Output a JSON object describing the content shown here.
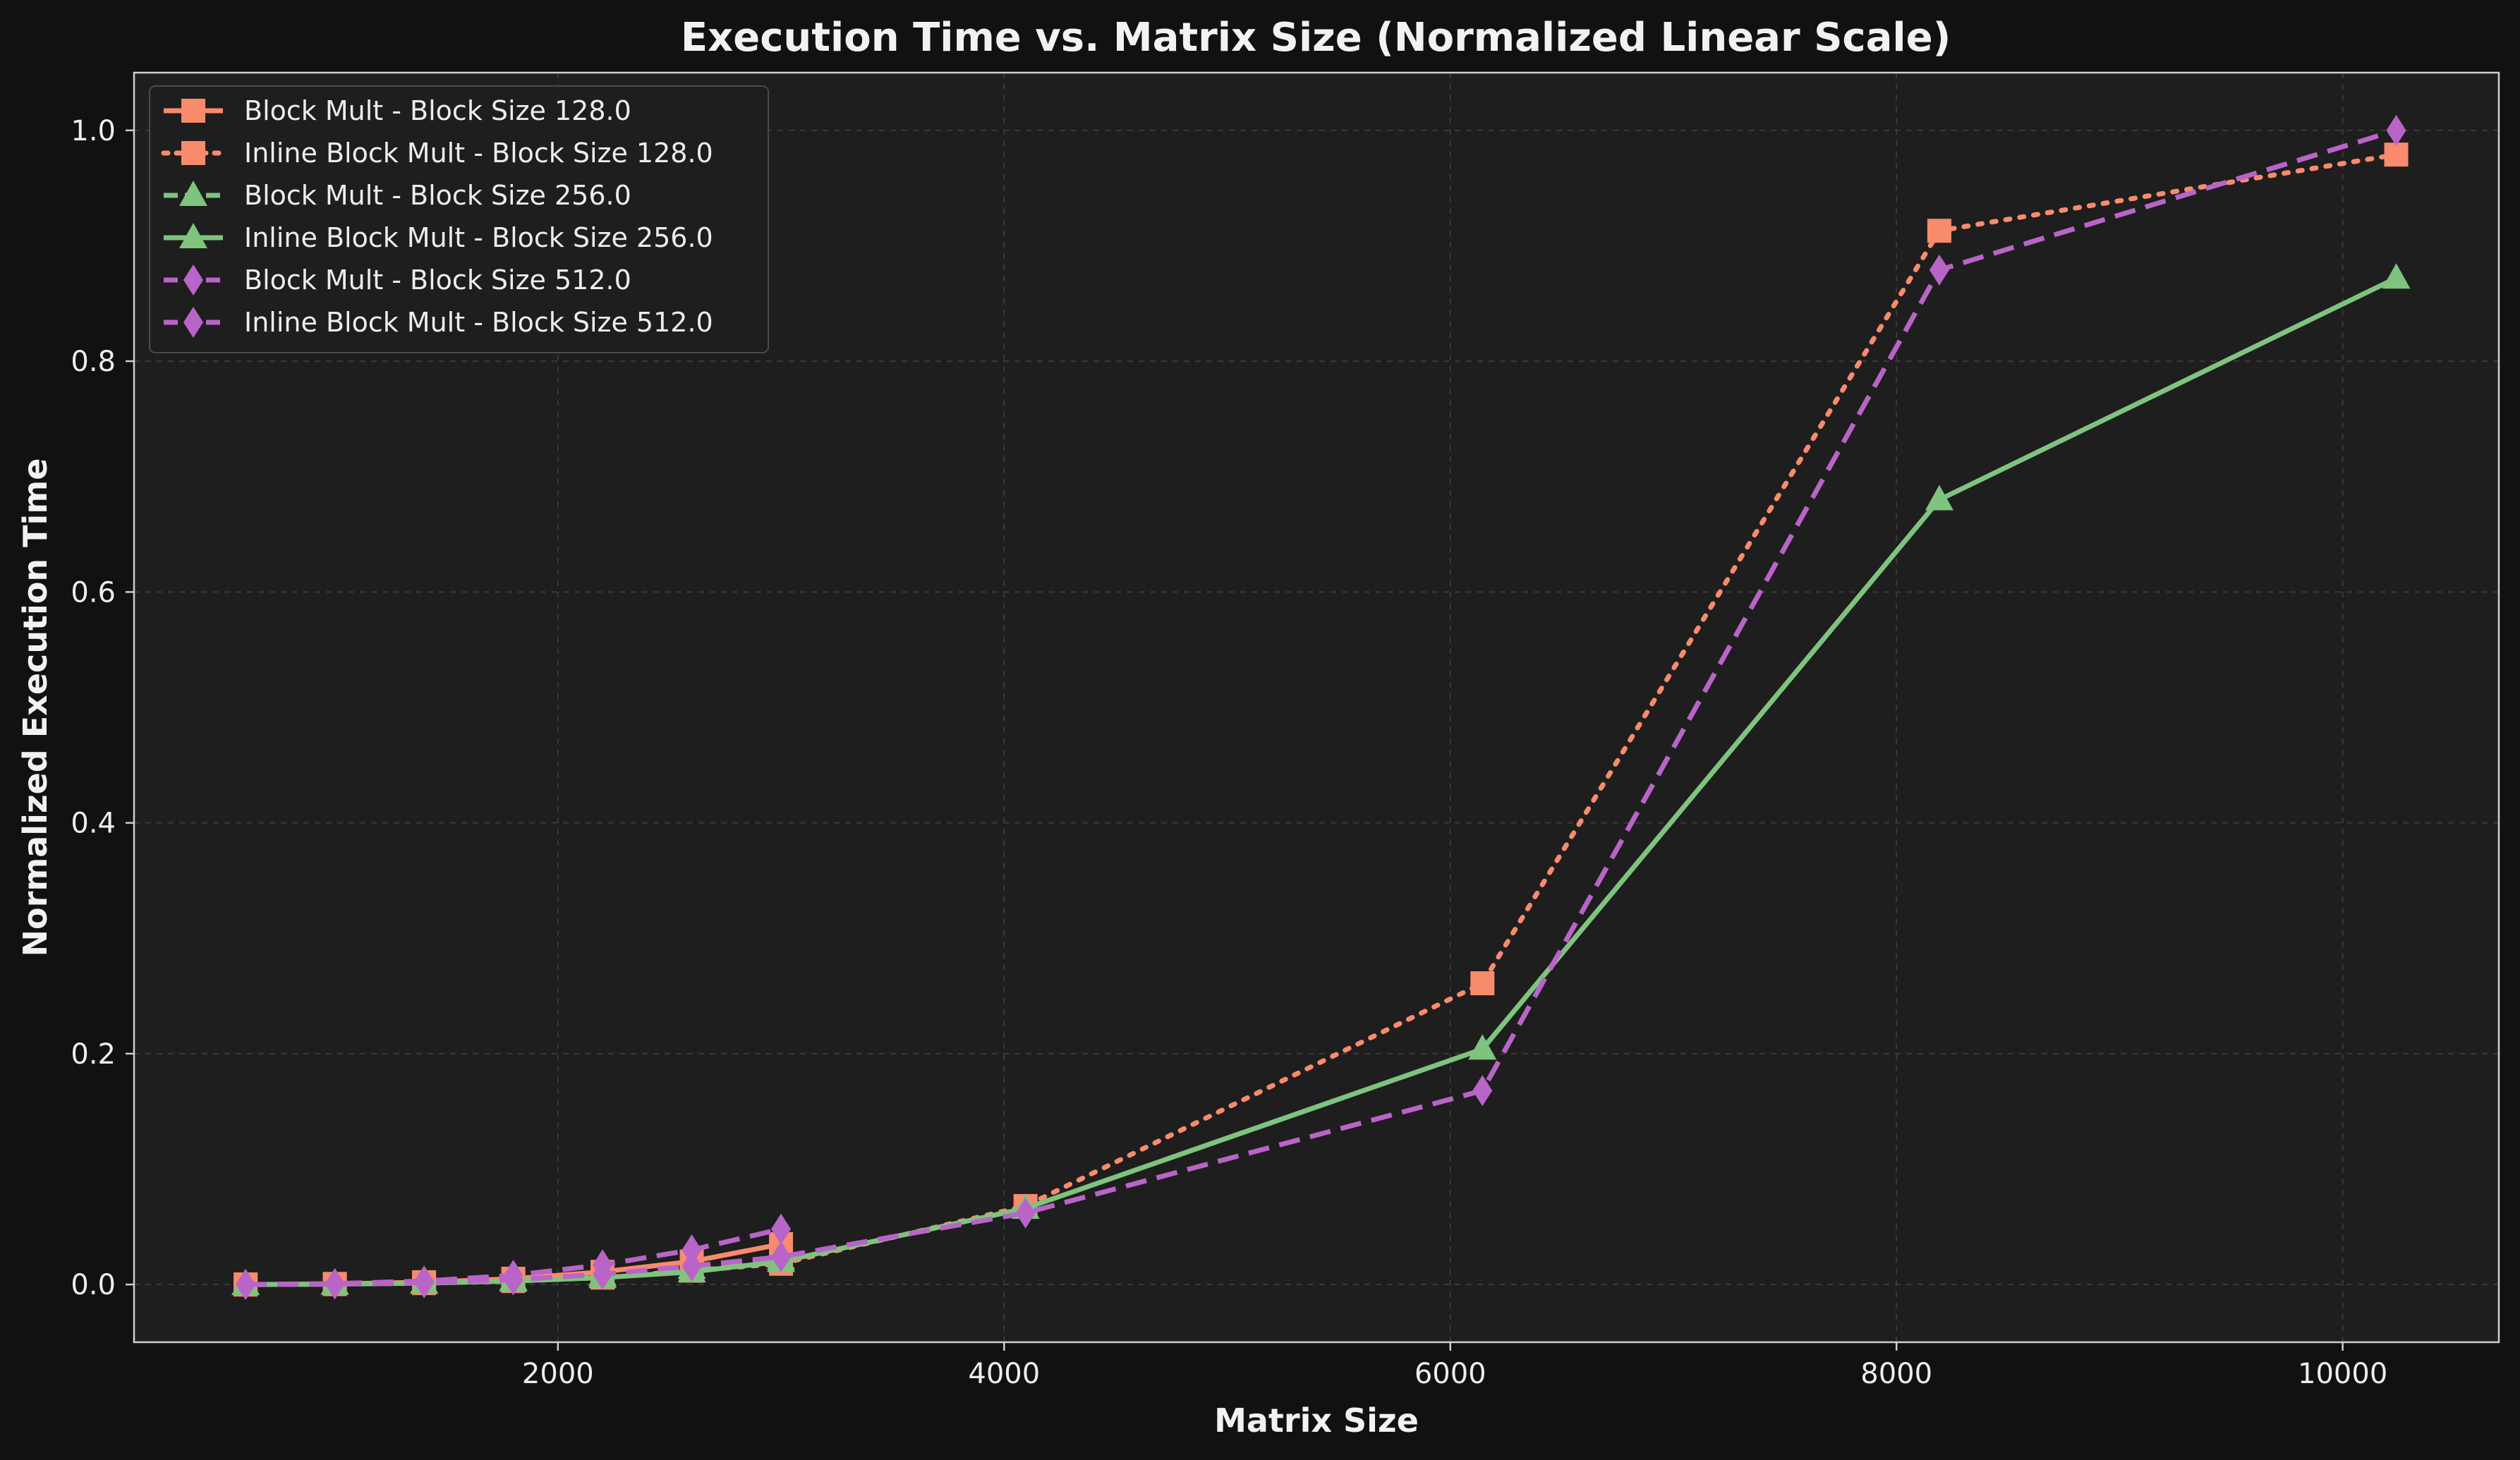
{
  "chart_data": {
    "type": "line",
    "title": "Execution Time vs. Matrix Size (Normalized Linear Scale)",
    "xlabel": "Matrix Size",
    "ylabel": "Normalized Execution Time",
    "xlim": [
      100,
      10700
    ],
    "ylim": [
      -0.05,
      1.05
    ],
    "xticks": [
      2000,
      4000,
      6000,
      8000,
      10000
    ],
    "yticks": [
      0.0,
      0.2,
      0.4,
      0.6,
      0.8,
      1.0
    ],
    "ytick_labels": [
      "0.0",
      "0.2",
      "0.4",
      "0.6",
      "0.8",
      "1.0"
    ],
    "grid": true,
    "legend_position": "top-left",
    "colors": {
      "background": "#111111",
      "plot_background": "#1e1e1e",
      "axes": "#cfcfcf",
      "grid": "#3a3a3a"
    },
    "series": [
      {
        "name": "Block Mult - Block Size 128.0",
        "color": "#f88b6c",
        "dash": "solid",
        "marker": "square",
        "x": [
          600,
          1000,
          1400,
          1800,
          2200,
          2600,
          3000
        ],
        "y": [
          0.0,
          0.0005,
          0.002,
          0.005,
          0.011,
          0.02,
          0.035
        ]
      },
      {
        "name": "Inline Block Mult - Block Size 128.0",
        "color": "#f88b6c",
        "dash": "dotted",
        "marker": "square",
        "x": [
          600,
          1000,
          1400,
          1800,
          2200,
          2600,
          3000,
          4096,
          6144,
          8192,
          10240
        ],
        "y": [
          0.0,
          0.0003,
          0.0012,
          0.003,
          0.006,
          0.012,
          0.018,
          0.068,
          0.261,
          0.913,
          0.979
        ]
      },
      {
        "name": "Block Mult - Block Size 256.0",
        "color": "#7ec47f",
        "dash": "dashed",
        "marker": "triangle",
        "x": [
          600,
          1000,
          1400,
          1800,
          2200,
          2600,
          3000
        ],
        "y": [
          0.0,
          0.0004,
          0.0015,
          0.004,
          0.008,
          0.014,
          0.022
        ]
      },
      {
        "name": "Inline Block Mult - Block Size 256.0",
        "color": "#7ec47f",
        "dash": "solid",
        "marker": "triangle",
        "x": [
          600,
          1000,
          1400,
          1800,
          2200,
          2600,
          3000,
          4096,
          6144,
          8192,
          10240
        ],
        "y": [
          0.0,
          0.0003,
          0.0012,
          0.003,
          0.006,
          0.011,
          0.02,
          0.066,
          0.204,
          0.68,
          0.872
        ]
      },
      {
        "name": "Block Mult - Block Size 512.0",
        "color": "#b964c8",
        "dash": "dashed",
        "marker": "diamond",
        "x": [
          600,
          1000,
          1400,
          1800,
          2200,
          2600,
          3000
        ],
        "y": [
          0.0,
          0.0008,
          0.003,
          0.008,
          0.017,
          0.03,
          0.048
        ]
      },
      {
        "name": "Inline Block Mult - Block Size 512.0",
        "color": "#b964c8",
        "dash": "dashed",
        "marker": "diamond",
        "x": [
          600,
          1000,
          1400,
          1800,
          2200,
          2600,
          3000,
          4096,
          6144,
          8192,
          10240
        ],
        "y": [
          0.0,
          0.0004,
          0.0015,
          0.004,
          0.009,
          0.016,
          0.024,
          0.062,
          0.168,
          0.879,
          1.0
        ]
      }
    ]
  }
}
